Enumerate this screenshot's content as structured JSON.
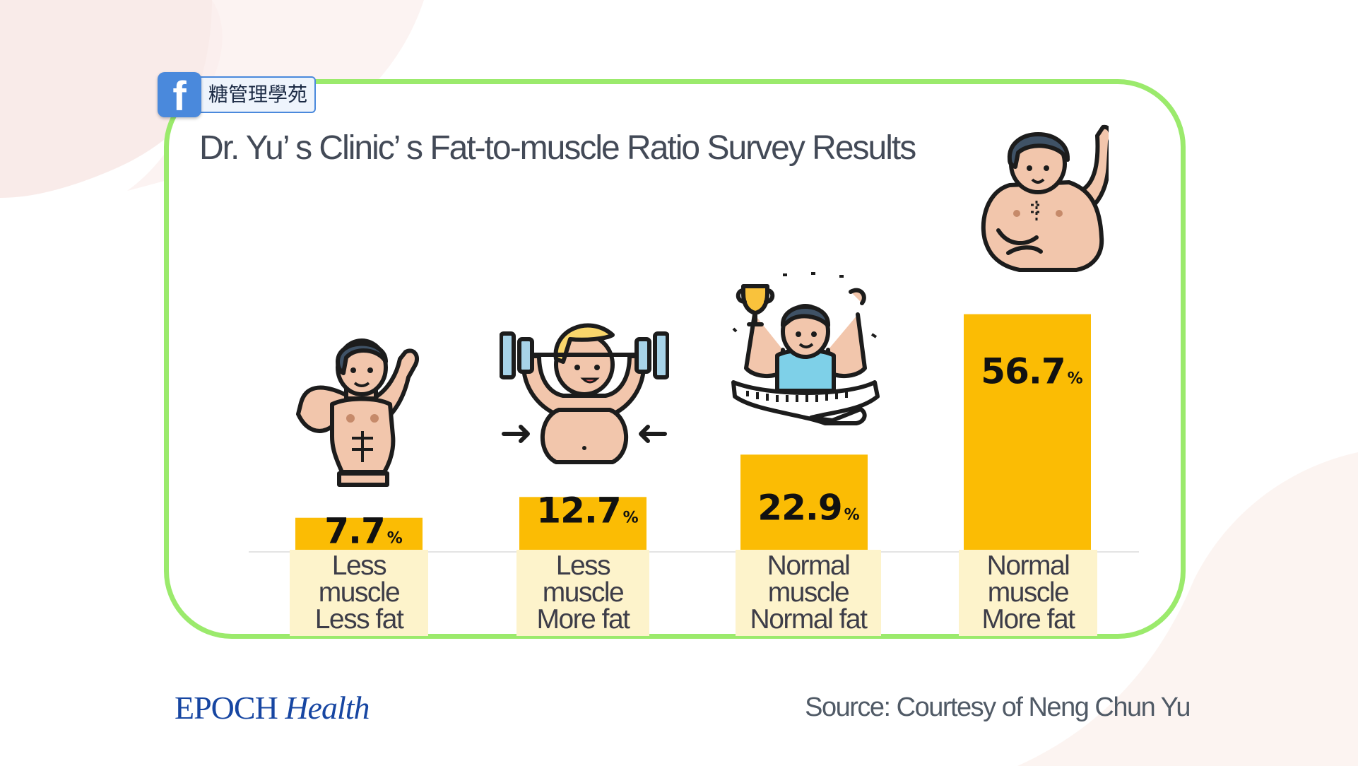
{
  "badge": {
    "icon": "facebook-icon",
    "label": "糖管理學苑"
  },
  "chart_data": {
    "type": "bar",
    "title": "Dr. Yu’ s Clinic’ s Fat-to-muscle Ratio Survey Results",
    "categories": [
      [
        "Less",
        "muscle",
        "Less fat"
      ],
      [
        "Less",
        "muscle",
        "More fat"
      ],
      [
        "Normal",
        "muscle",
        "Normal fat"
      ],
      [
        "Normal",
        "muscle",
        "More fat"
      ]
    ],
    "values": [
      7.7,
      12.7,
      22.9,
      56.7
    ],
    "value_labels": [
      "7.7",
      "12.7",
      "22.9",
      "56.7"
    ],
    "unit": "%",
    "ylim": [
      0,
      60
    ],
    "xlabel": "",
    "ylabel": "",
    "grid": false,
    "legend": "none",
    "bar_color": "#fbbc04",
    "icons": [
      "muscular-man-icon",
      "weightlifting-man-icon",
      "trophy-athlete-icon",
      "overweight-man-icon"
    ]
  },
  "footer": {
    "brand_main": "EPOCH",
    "brand_sub": "Health",
    "source": "Source: Courtesy of Neng Chun Yu"
  },
  "colors": {
    "frame": "#9bea6c",
    "bar": "#fbbc04",
    "category_bg": "#fdf3cb",
    "brand": "#1746a2"
  }
}
